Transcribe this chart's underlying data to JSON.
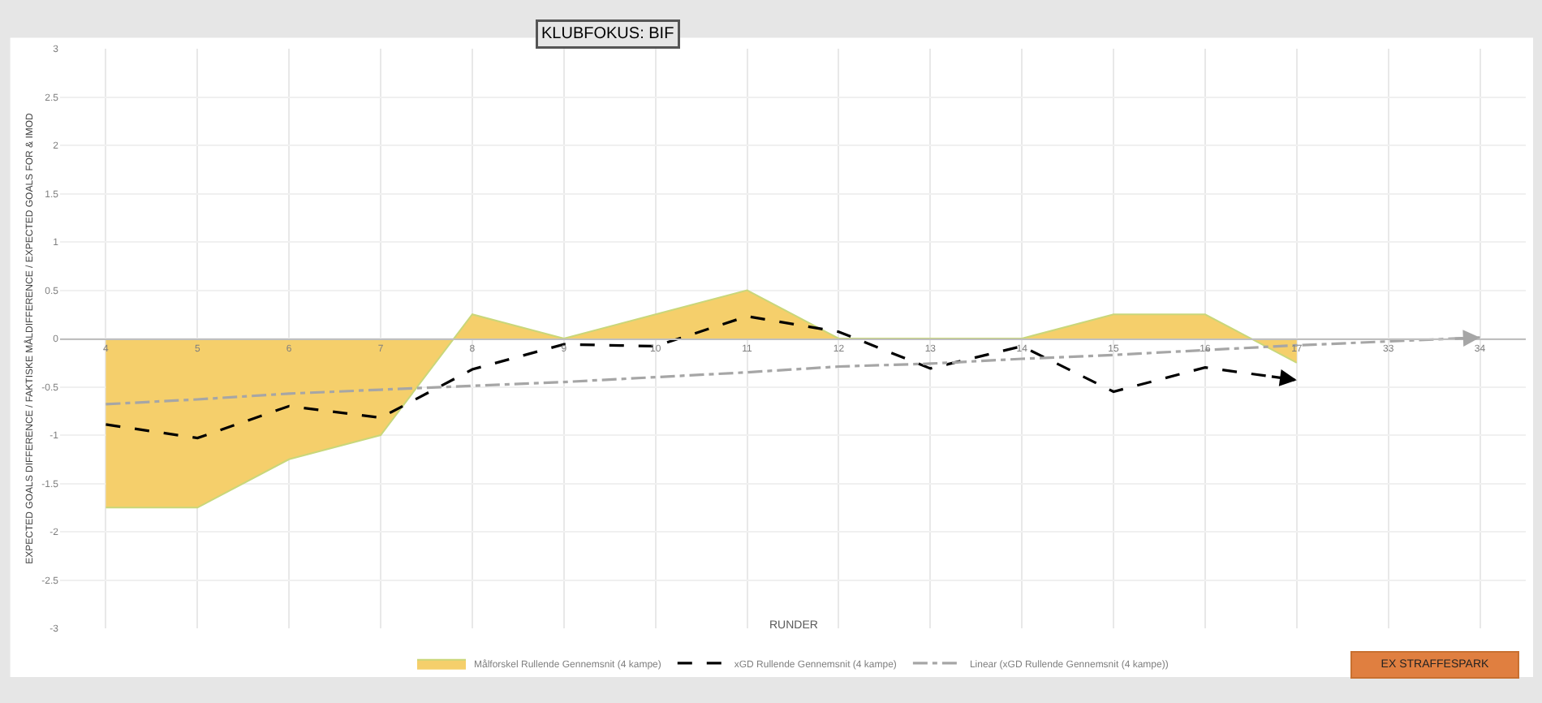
{
  "chart_data": {
    "type": "area",
    "title": "KLUBFOKUS: BIF",
    "xlabel": "RUNDER",
    "ylabel": "EXPECTED GOALS DIFFERENCE / FAKTISKE MÅLDIFFERENCE / EXPECTED GOALS FOR & IMOD",
    "categories": [
      "4",
      "5",
      "6",
      "7",
      "8",
      "9",
      "10",
      "11",
      "12",
      "13",
      "14",
      "15",
      "16",
      "17",
      "33",
      "34"
    ],
    "series": [
      {
        "name": "Målforskel Rullende Gennemsnit (4 kampe)",
        "color": "#f5cf6b",
        "values": [
          -1.75,
          -1.75,
          -1.25,
          -1.0,
          0.25,
          0,
          0.25,
          0.5,
          0,
          0,
          0,
          0.25,
          0.25,
          -0.25,
          null,
          null
        ]
      },
      {
        "name": "xGD Rullende Gennemsnit (4 kampe)",
        "type": "line",
        "color": "#000000",
        "line_style": "dashed",
        "values": [
          -0.89,
          -1.03,
          -0.7,
          -0.82,
          -0.32,
          -0.06,
          -0.08,
          0.23,
          0.07,
          -0.31,
          -0.08,
          -0.55,
          -0.3,
          -0.43,
          null,
          null
        ]
      },
      {
        "name": "Linear (xGD Rullende Gennemsnit (4 kampe))",
        "type": "line",
        "color": "#a6a6a6",
        "line_style": "dotted",
        "values": [
          -0.68,
          -0.63,
          -0.57,
          -0.53,
          -0.49,
          -0.45,
          -0.4,
          -0.35,
          -0.29,
          -0.26,
          -0.21,
          -0.17,
          -0.12,
          -0.07,
          -0.03,
          0.01
        ]
      }
    ],
    "ylim": [
      -3,
      3
    ],
    "yticks": [
      -3,
      -2.5,
      -2,
      -1.5,
      -1,
      -0.5,
      0,
      0.5,
      1,
      1.5,
      2,
      2.5,
      3
    ],
    "grid": true,
    "legend": "bottom",
    "annotations": [
      "EX STRAFFESPARK"
    ]
  }
}
